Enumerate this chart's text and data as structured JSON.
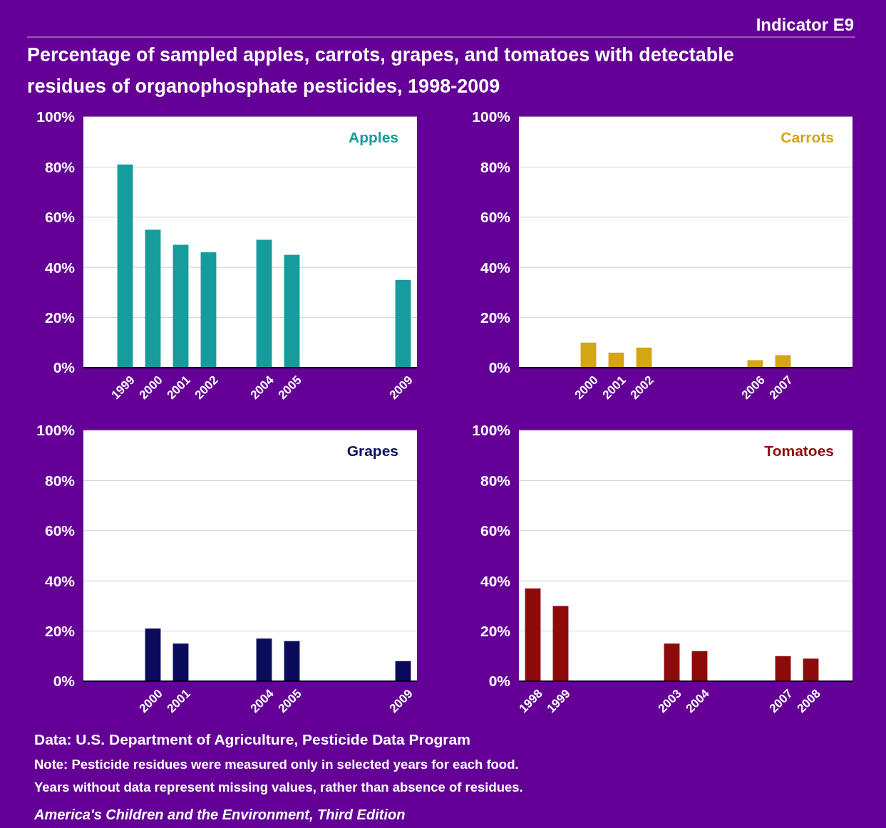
{
  "chart_data": [
    {
      "type": "bar",
      "title": "Percentage of sampled apples, carrots, grapes, and tomatoes with detectable residues of organophosphate pesticides, 1998-2009",
      "annotations": [
        "Indicator E9",
        "Data: U.S. Department of Agriculture, Pesticide Data Program",
        "Note: Pesticide residues were measured only in selected years for each food.",
        "Years without data represent missing values, rather than absence of residues.",
        "America's Children and the Environment, Third Edition"
      ],
      "categories": [
        null,
        "1999",
        "2000",
        "2001",
        "2002",
        null,
        "2004",
        "2005",
        null,
        null,
        null,
        "2009"
      ],
      "series": [
        {
          "name": "Apples",
          "color": "#169c9c",
          "values": [
            null,
            81,
            55,
            49,
            46,
            null,
            51,
            45,
            null,
            null,
            null,
            35
          ]
        }
      ],
      "ylim": [
        0,
        100
      ],
      "yticks": [
        {
          "value": 0,
          "label": "0%"
        },
        {
          "value": 20,
          "label": "20%"
        },
        {
          "value": 40,
          "label": "40%"
        },
        {
          "value": 60,
          "label": "60%"
        },
        {
          "value": 80,
          "label": "80%"
        },
        {
          "value": 100,
          "label": "100%"
        }
      ],
      "grid": "y"
    },
    {
      "type": "bar",
      "categories": [
        null,
        null,
        "2000",
        "2001",
        "2002",
        null,
        null,
        null,
        "2006",
        "2007",
        null,
        null
      ],
      "series": [
        {
          "name": "Carrots",
          "color": "#d4a514",
          "values": [
            null,
            null,
            10,
            6,
            8,
            null,
            null,
            null,
            3,
            5,
            null,
            null
          ]
        }
      ],
      "ylim": [
        0,
        100
      ],
      "yticks": [
        {
          "value": 0,
          "label": "0%"
        },
        {
          "value": 20,
          "label": "20%"
        },
        {
          "value": 40,
          "label": "40%"
        },
        {
          "value": 60,
          "label": "60%"
        },
        {
          "value": 80,
          "label": "80%"
        },
        {
          "value": 100,
          "label": "100%"
        }
      ],
      "grid": "y"
    },
    {
      "type": "bar",
      "categories": [
        null,
        null,
        "2000",
        "2001",
        null,
        null,
        "2004",
        "2005",
        null,
        null,
        null,
        "2009"
      ],
      "series": [
        {
          "name": "Grapes",
          "color": "#0b0b5c",
          "values": [
            null,
            null,
            21,
            15,
            null,
            null,
            17,
            16,
            null,
            null,
            null,
            8
          ]
        }
      ],
      "ylim": [
        0,
        100
      ],
      "yticks": [
        {
          "value": 0,
          "label": "0%"
        },
        {
          "value": 20,
          "label": "20%"
        },
        {
          "value": 40,
          "label": "40%"
        },
        {
          "value": 60,
          "label": "60%"
        },
        {
          "value": 80,
          "label": "80%"
        },
        {
          "value": 100,
          "label": "100%"
        }
      ],
      "grid": "y"
    },
    {
      "type": "bar",
      "categories": [
        "1998",
        "1999",
        null,
        null,
        null,
        "2003",
        "2004",
        null,
        null,
        "2007",
        "2008",
        null
      ],
      "series": [
        {
          "name": "Tomatoes",
          "color": "#8e0b0b",
          "values": [
            37,
            30,
            null,
            null,
            null,
            15,
            12,
            null,
            null,
            10,
            9,
            null
          ]
        }
      ],
      "ylim": [
        0,
        100
      ],
      "yticks": [
        {
          "value": 0,
          "label": "0%"
        },
        {
          "value": 20,
          "label": "20%"
        },
        {
          "value": 40,
          "label": "40%"
        },
        {
          "value": 60,
          "label": "60%"
        },
        {
          "value": 80,
          "label": "80%"
        },
        {
          "value": 100,
          "label": "100%"
        }
      ],
      "grid": "y"
    }
  ]
}
